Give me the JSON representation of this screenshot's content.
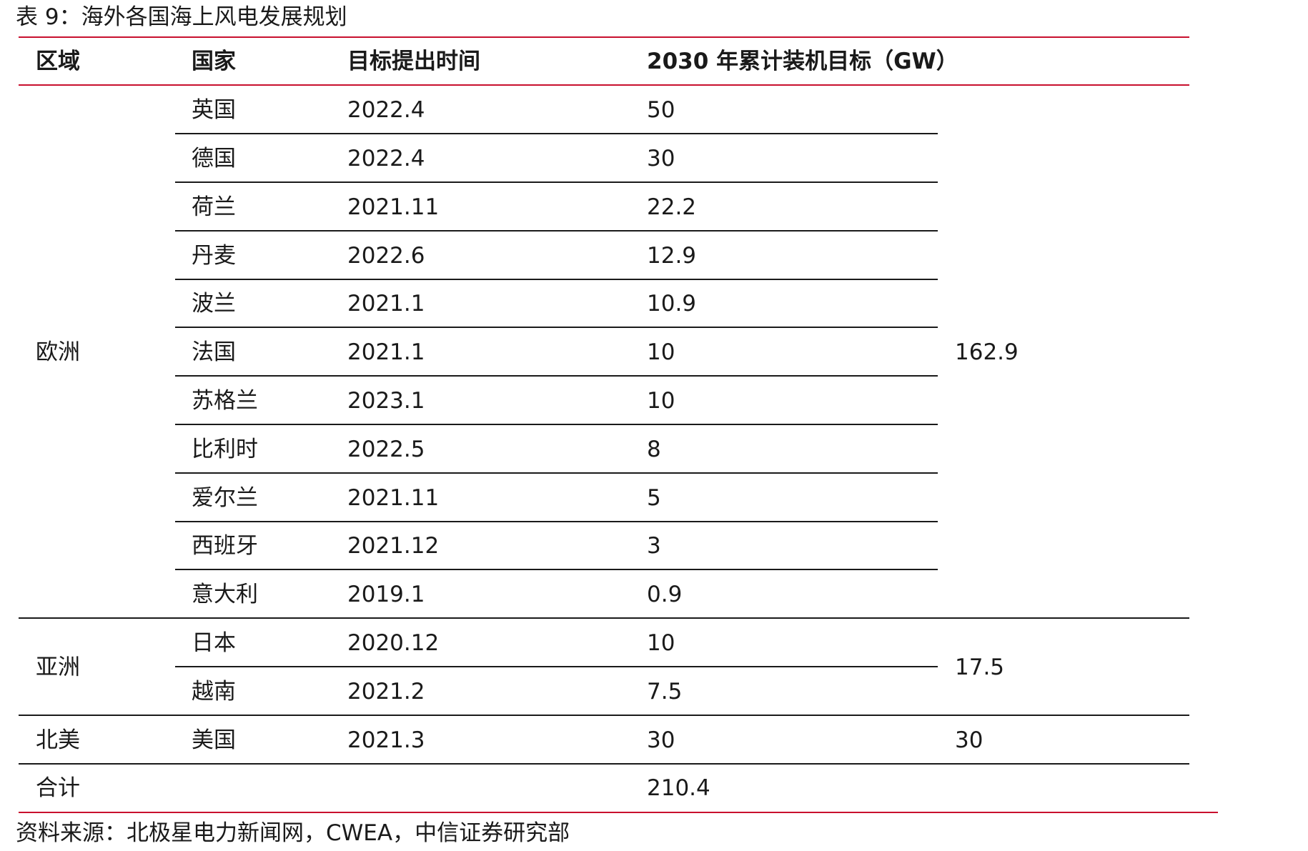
{
  "title": "表 9：海外各国海上风电发展规划",
  "table": {
    "headers": [
      "区域",
      "国家",
      "目标提出时间",
      "2030 年累计装机目标（GW）"
    ],
    "rows": [
      {
        "country": "英国",
        "time": "2022.4",
        "target": "50"
      },
      {
        "country": "德国",
        "time": "2022.4",
        "target": "30"
      },
      {
        "country": "荷兰",
        "time": "2021.11",
        "target": "22.2"
      },
      {
        "country": "丹麦",
        "time": "2022.6",
        "target": "12.9"
      },
      {
        "country": "波兰",
        "time": "2021.1",
        "target": "10.9"
      },
      {
        "country": "法国",
        "time": "2021.1",
        "target": "10"
      },
      {
        "country": "苏格兰",
        "time": "2023.1",
        "target": "10"
      },
      {
        "country": "比利时",
        "time": "2022.5",
        "target": "8"
      },
      {
        "country": "爱尔兰",
        "time": "2021.11",
        "target": "5"
      },
      {
        "country": "西班牙",
        "time": "2021.12",
        "target": "3"
      },
      {
        "country": "意大利",
        "time": "2019.1",
        "target": "0.9"
      },
      {
        "country": "日本",
        "time": "2020.12",
        "target": "10"
      },
      {
        "country": "越南",
        "time": "2021.2",
        "target": "7.5"
      },
      {
        "country": "美国",
        "time": "2021.3",
        "target": "30"
      }
    ],
    "regions": [
      {
        "name": "欧洲",
        "subtotal": "162.9"
      },
      {
        "name": "亚洲",
        "subtotal": "17.5"
      },
      {
        "name": "北美",
        "subtotal": "30"
      }
    ],
    "total": {
      "label": "合计",
      "value": "210.4"
    }
  },
  "source": "资料来源：北极星电力新闻网，CWEA，中信证券研究部"
}
